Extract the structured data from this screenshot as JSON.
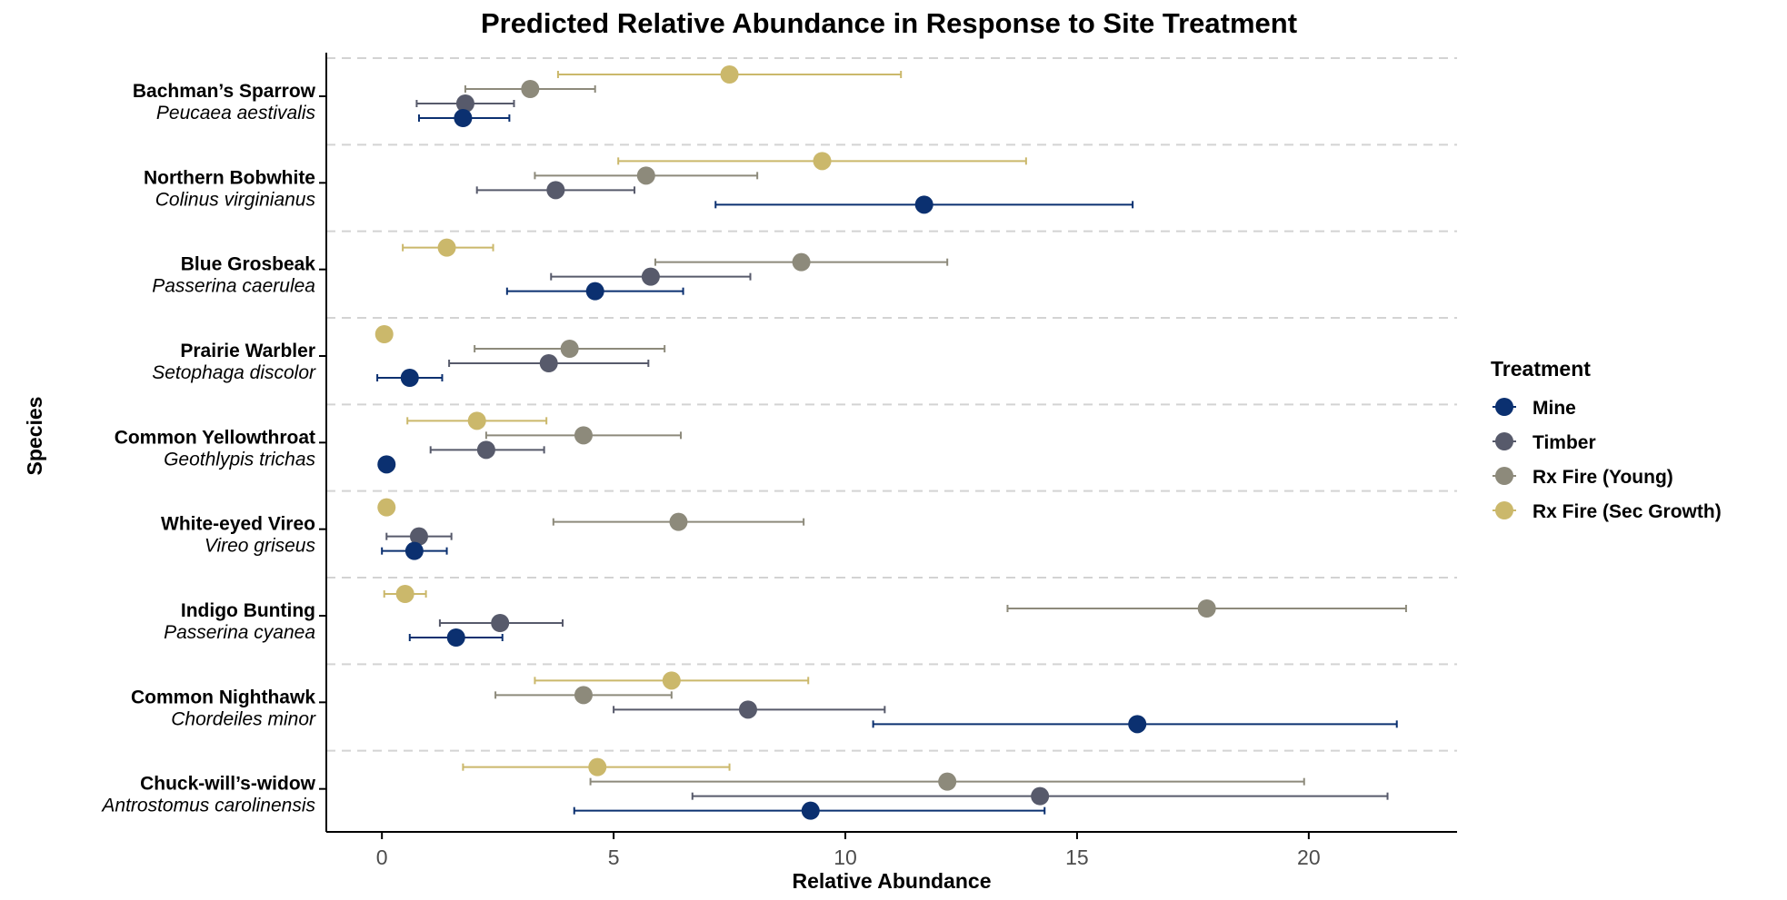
{
  "chart_data": {
    "type": "scatter",
    "title": "Predicted Relative Abundance in Response to Site Treatment",
    "xlabel": "Relative Abundance",
    "ylabel": "Species",
    "xlim": [
      -1.2,
      23.2
    ],
    "xticks": [
      0,
      5,
      10,
      15,
      20
    ],
    "grid": "horizontal dashed separators between species",
    "legend": {
      "title": "Treatment",
      "placement": "right",
      "entries": [
        "Mine",
        "Timber",
        "Rx Fire (Young)",
        "Rx Fire (Sec Growth)"
      ]
    },
    "colors": {
      "Mine": "#0b3070",
      "Timber": "#575a6b",
      "Rx Fire (Young)": "#8d8a7b",
      "Rx Fire (Sec Growth)": "#cbb86b"
    },
    "species": [
      {
        "common": "Bachman’s Sparrow",
        "scientific": "Peucaea aestivalis"
      },
      {
        "common": "Northern Bobwhite",
        "scientific": "Colinus virginianus"
      },
      {
        "common": "Blue Grosbeak",
        "scientific": "Passerina caerulea"
      },
      {
        "common": "Prairie Warbler",
        "scientific": "Setophaga discolor"
      },
      {
        "common": "Common Yellowthroat",
        "scientific": "Geothlypis trichas"
      },
      {
        "common": "White-eyed Vireo",
        "scientific": "Vireo griseus"
      },
      {
        "common": "Indigo Bunting",
        "scientific": "Passerina cyanea"
      },
      {
        "common": "Common Nighthawk",
        "scientific": "Chordeiles minor"
      },
      {
        "common": "Chuck-will’s-widow",
        "scientific": "Antrostomus carolinensis"
      }
    ],
    "series": [
      {
        "name": "Rx Fire (Sec Growth)",
        "points": [
          {
            "species": "Bachman’s Sparrow",
            "x": 7.5,
            "lo": 3.8,
            "hi": 11.2
          },
          {
            "species": "Northern Bobwhite",
            "x": 9.5,
            "lo": 5.1,
            "hi": 13.9
          },
          {
            "species": "Blue Grosbeak",
            "x": 1.4,
            "lo": 0.45,
            "hi": 2.4
          },
          {
            "species": "Prairie Warbler",
            "x": 0.05,
            "lo": null,
            "hi": null
          },
          {
            "species": "Common Yellowthroat",
            "x": 2.05,
            "lo": 0.55,
            "hi": 3.55
          },
          {
            "species": "White-eyed Vireo",
            "x": 0.1,
            "lo": null,
            "hi": null
          },
          {
            "species": "Indigo Bunting",
            "x": 0.5,
            "lo": 0.05,
            "hi": 0.95
          },
          {
            "species": "Common Nighthawk",
            "x": 6.25,
            "lo": 3.3,
            "hi": 9.2
          },
          {
            "species": "Chuck-will’s-widow",
            "x": 4.65,
            "lo": 1.75,
            "hi": 7.5
          }
        ]
      },
      {
        "name": "Rx Fire (Young)",
        "points": [
          {
            "species": "Bachman’s Sparrow",
            "x": 3.2,
            "lo": 1.8,
            "hi": 4.6
          },
          {
            "species": "Northern Bobwhite",
            "x": 5.7,
            "lo": 3.3,
            "hi": 8.1
          },
          {
            "species": "Blue Grosbeak",
            "x": 9.05,
            "lo": 5.9,
            "hi": 12.2
          },
          {
            "species": "Prairie Warbler",
            "x": 4.05,
            "lo": 2.0,
            "hi": 6.1
          },
          {
            "species": "Common Yellowthroat",
            "x": 4.35,
            "lo": 2.25,
            "hi": 6.45
          },
          {
            "species": "White-eyed Vireo",
            "x": 6.4,
            "lo": 3.7,
            "hi": 9.1
          },
          {
            "species": "Indigo Bunting",
            "x": 17.8,
            "lo": 13.5,
            "hi": 22.1
          },
          {
            "species": "Common Nighthawk",
            "x": 4.35,
            "lo": 2.45,
            "hi": 6.25
          },
          {
            "species": "Chuck-will’s-widow",
            "x": 12.2,
            "lo": 4.5,
            "hi": 19.9
          }
        ]
      },
      {
        "name": "Timber",
        "points": [
          {
            "species": "Bachman’s Sparrow",
            "x": 1.8,
            "lo": 0.75,
            "hi": 2.85
          },
          {
            "species": "Northern Bobwhite",
            "x": 3.75,
            "lo": 2.05,
            "hi": 5.45
          },
          {
            "species": "Blue Grosbeak",
            "x": 5.8,
            "lo": 3.65,
            "hi": 7.95
          },
          {
            "species": "Prairie Warbler",
            "x": 3.6,
            "lo": 1.45,
            "hi": 5.75
          },
          {
            "species": "Common Yellowthroat",
            "x": 2.25,
            "lo": 1.05,
            "hi": 3.5
          },
          {
            "species": "White-eyed Vireo",
            "x": 0.8,
            "lo": 0.1,
            "hi": 1.5
          },
          {
            "species": "Indigo Bunting",
            "x": 2.55,
            "lo": 1.25,
            "hi": 3.9
          },
          {
            "species": "Common Nighthawk",
            "x": 7.9,
            "lo": 5.0,
            "hi": 10.85
          },
          {
            "species": "Chuck-will’s-widow",
            "x": 14.2,
            "lo": 6.7,
            "hi": 21.7
          }
        ]
      },
      {
        "name": "Mine",
        "points": [
          {
            "species": "Bachman’s Sparrow",
            "x": 1.75,
            "lo": 0.8,
            "hi": 2.75
          },
          {
            "species": "Northern Bobwhite",
            "x": 11.7,
            "lo": 7.2,
            "hi": 16.2
          },
          {
            "species": "Blue Grosbeak",
            "x": 4.6,
            "lo": 2.7,
            "hi": 6.5
          },
          {
            "species": "Prairie Warbler",
            "x": 0.6,
            "lo": -0.1,
            "hi": 1.3
          },
          {
            "species": "Common Yellowthroat",
            "x": 0.1,
            "lo": null,
            "hi": null
          },
          {
            "species": "White-eyed Vireo",
            "x": 0.7,
            "lo": 0.0,
            "hi": 1.4
          },
          {
            "species": "Indigo Bunting",
            "x": 1.6,
            "lo": 0.6,
            "hi": 2.6
          },
          {
            "species": "Common Nighthawk",
            "x": 16.3,
            "lo": 10.6,
            "hi": 21.9
          },
          {
            "species": "Chuck-will’s-widow",
            "x": 9.25,
            "lo": 4.15,
            "hi": 14.3
          }
        ]
      }
    ]
  }
}
